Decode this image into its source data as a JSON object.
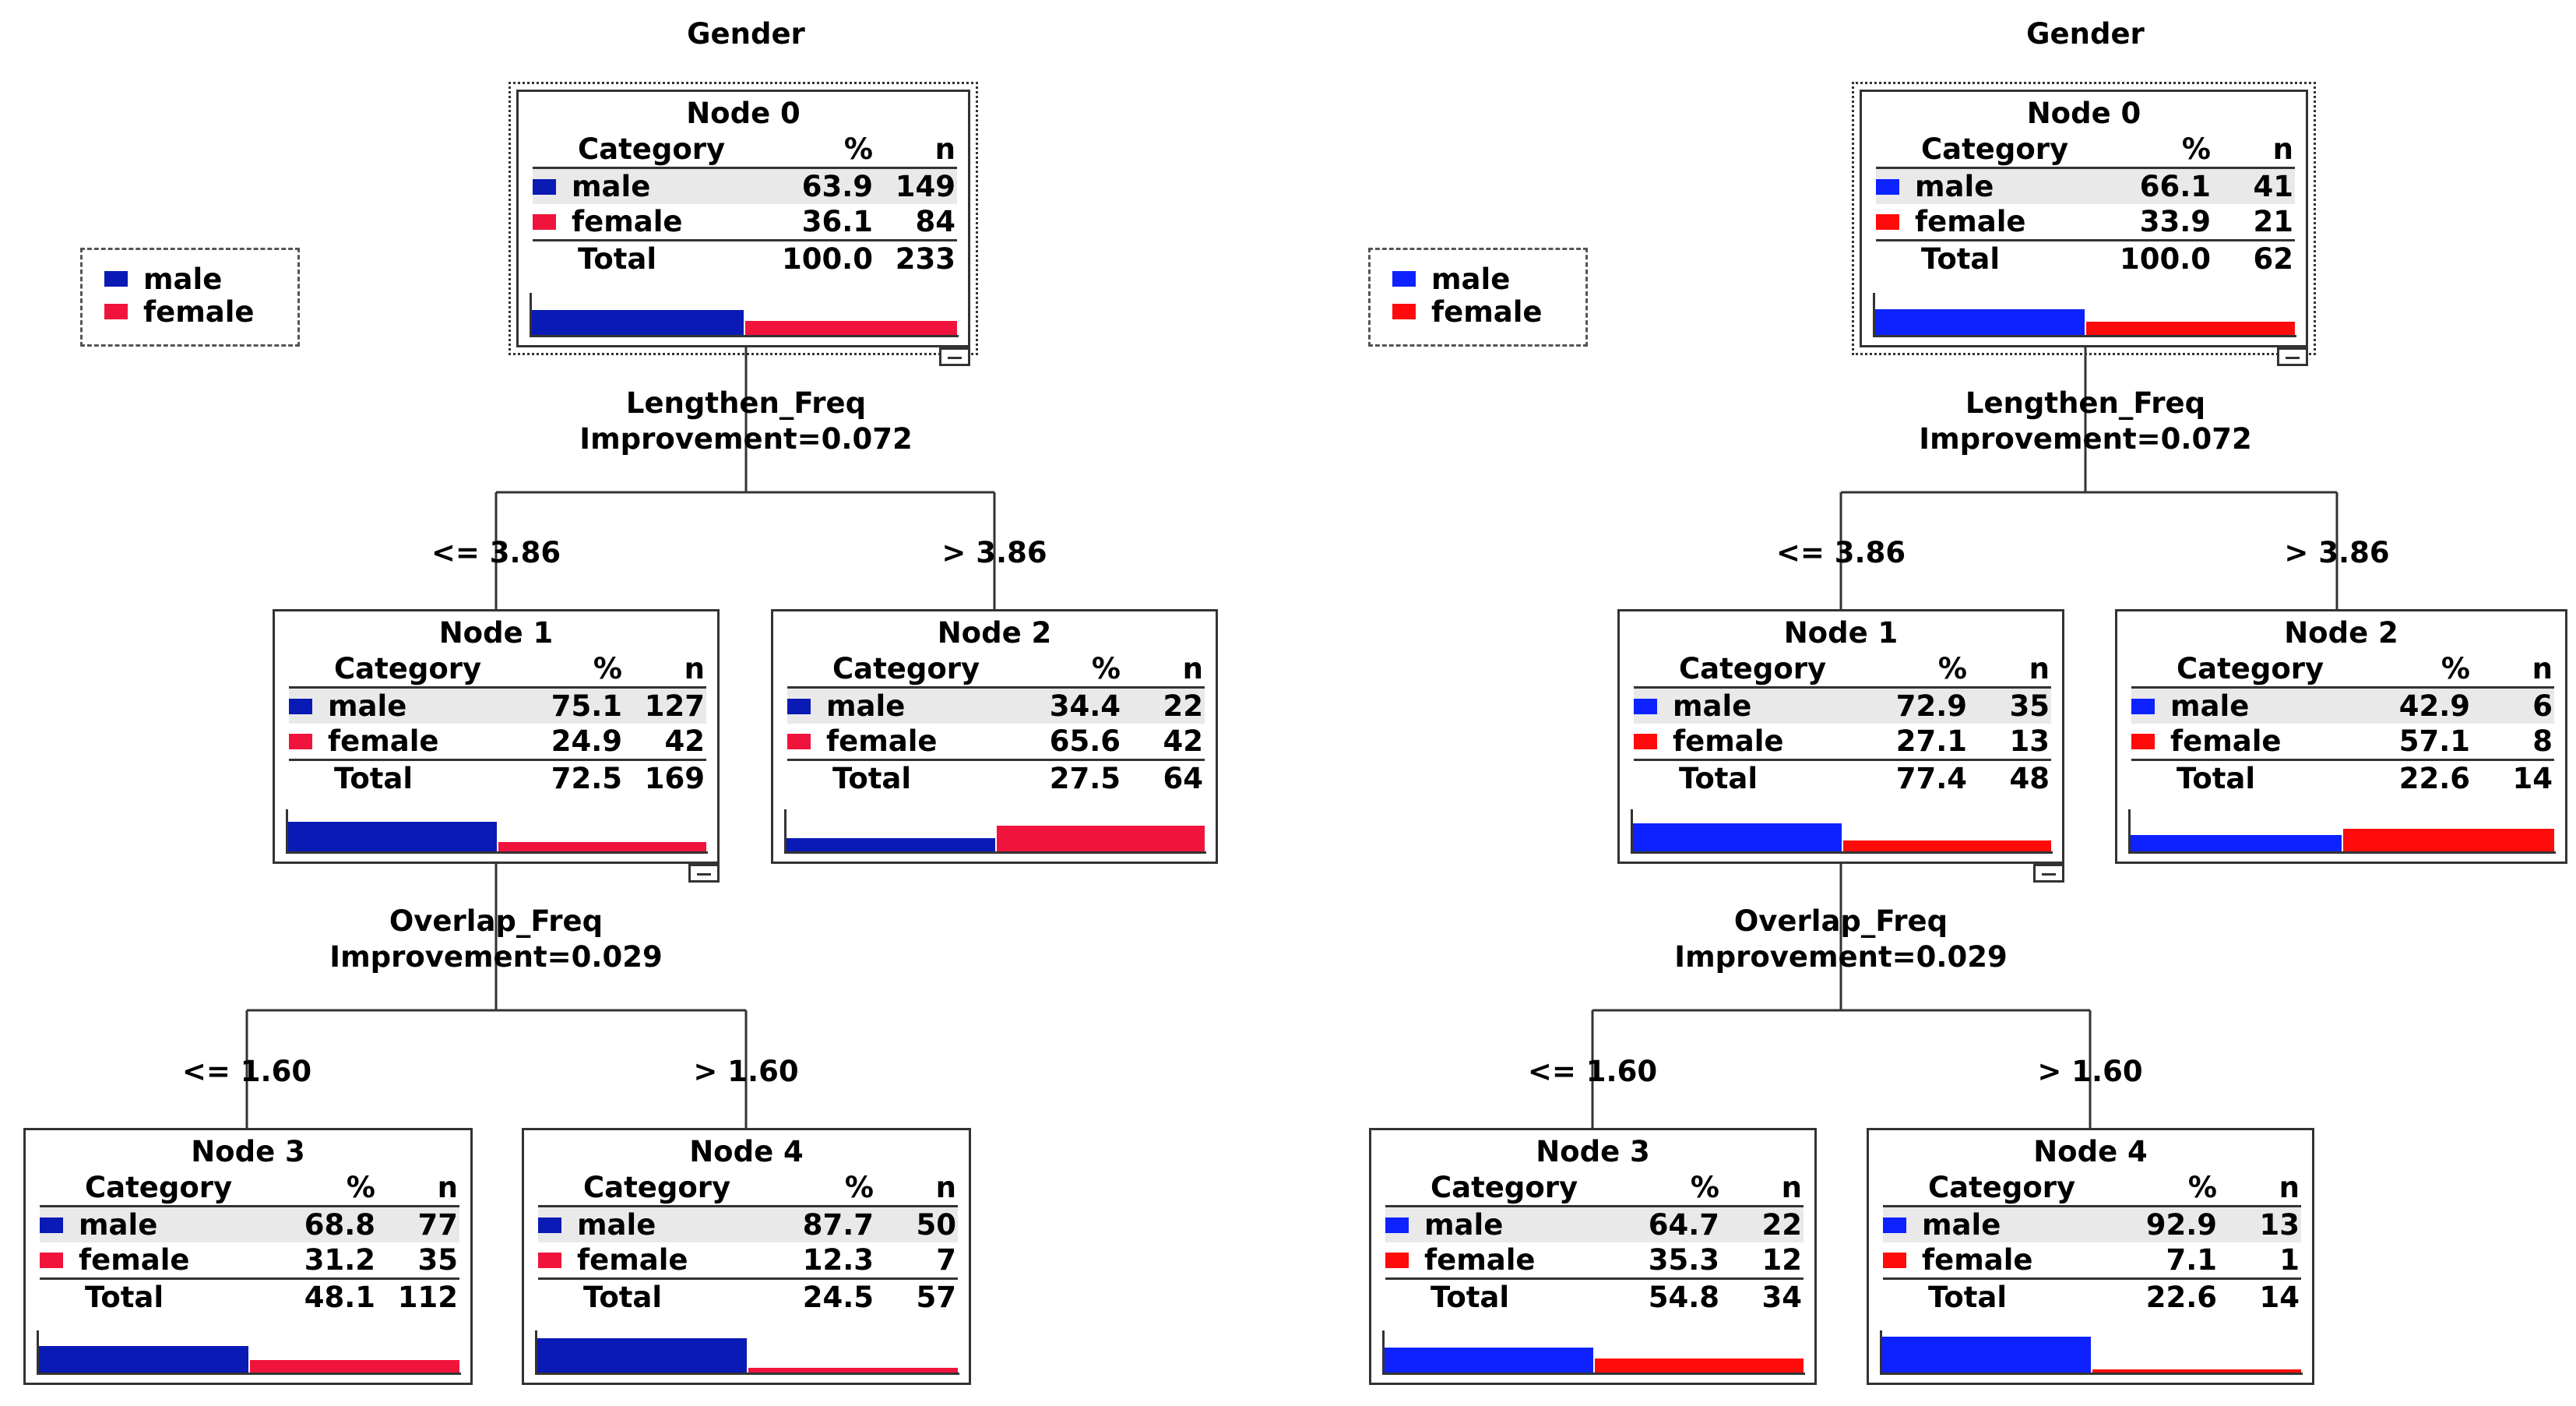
{
  "colors": {
    "left_male": "#0a1ab4",
    "left_female": "#f0143c",
    "right_male": "#0d22ff",
    "right_female": "#ff0b0b",
    "shade": "#e9e9e9",
    "line": "#333333"
  },
  "trees": [
    {
      "target": "Gender",
      "legend": {
        "male_label": "male",
        "female_label": "female",
        "male_icon": "male-swatch",
        "female_icon": "female-swatch"
      },
      "headers": {
        "category": "Category",
        "pct": "%",
        "n": "n",
        "total": "Total"
      },
      "splits": [
        {
          "variable": "Lengthen_Freq",
          "improvement": "Improvement=0.072",
          "left_cond": "<= 3.86",
          "right_cond": "> 3.86"
        },
        {
          "variable": "Overlap_Freq",
          "improvement": "Improvement=0.029",
          "left_cond": "<= 1.60",
          "right_cond": "> 1.60"
        }
      ],
      "nodes": [
        {
          "title": "Node 0",
          "male_pct": "63.9",
          "male_n": "149",
          "male_label": "male",
          "female_pct": "36.1",
          "female_n": "84",
          "female_label": "female",
          "total_pct": "100.0",
          "total_n": "233",
          "male_share": 0.639,
          "female_share": 0.361
        },
        {
          "title": "Node 1",
          "male_pct": "75.1",
          "male_n": "127",
          "male_label": "male",
          "female_pct": "24.9",
          "female_n": "42",
          "female_label": "female",
          "total_pct": "72.5",
          "total_n": "169",
          "male_share": 0.751,
          "female_share": 0.249
        },
        {
          "title": "Node 2",
          "male_pct": "34.4",
          "male_n": "22",
          "male_label": "male",
          "female_pct": "65.6",
          "female_n": "42",
          "female_label": "female",
          "total_pct": "27.5",
          "total_n": "64",
          "male_share": 0.344,
          "female_share": 0.656
        },
        {
          "title": "Node 3",
          "male_pct": "68.8",
          "male_n": "77",
          "male_label": "male",
          "female_pct": "31.2",
          "female_n": "35",
          "female_label": "female",
          "total_pct": "48.1",
          "total_n": "112",
          "male_share": 0.688,
          "female_share": 0.312
        },
        {
          "title": "Node 4",
          "male_pct": "87.7",
          "male_n": "50",
          "male_label": "male",
          "female_pct": "12.3",
          "female_n": "7",
          "female_label": "female",
          "total_pct": "24.5",
          "total_n": "57",
          "male_share": 0.877,
          "female_share": 0.123
        }
      ]
    },
    {
      "target": "Gender",
      "legend": {
        "male_label": "male",
        "female_label": "female",
        "male_icon": "male-swatch",
        "female_icon": "female-swatch"
      },
      "headers": {
        "category": "Category",
        "pct": "%",
        "n": "n",
        "total": "Total"
      },
      "splits": [
        {
          "variable": "Lengthen_Freq",
          "improvement": "Improvement=0.072",
          "left_cond": "<= 3.86",
          "right_cond": "> 3.86"
        },
        {
          "variable": "Overlap_Freq",
          "improvement": "Improvement=0.029",
          "left_cond": "<= 1.60",
          "right_cond": "> 1.60"
        }
      ],
      "nodes": [
        {
          "title": "Node 0",
          "male_pct": "66.1",
          "male_n": "41",
          "male_label": "male",
          "female_pct": "33.9",
          "female_n": "21",
          "female_label": "female",
          "total_pct": "100.0",
          "total_n": "62",
          "male_share": 0.661,
          "female_share": 0.339
        },
        {
          "title": "Node 1",
          "male_pct": "72.9",
          "male_n": "35",
          "male_label": "male",
          "female_pct": "27.1",
          "female_n": "13",
          "female_label": "female",
          "total_pct": "77.4",
          "total_n": "48",
          "male_share": 0.729,
          "female_share": 0.271
        },
        {
          "title": "Node 2",
          "male_pct": "42.9",
          "male_n": "6",
          "male_label": "male",
          "female_pct": "57.1",
          "female_n": "8",
          "female_label": "female",
          "total_pct": "22.6",
          "total_n": "14",
          "male_share": 0.429,
          "female_share": 0.571
        },
        {
          "title": "Node 3",
          "male_pct": "64.7",
          "male_n": "22",
          "male_label": "male",
          "female_pct": "35.3",
          "female_n": "12",
          "female_label": "female",
          "total_pct": "54.8",
          "total_n": "34",
          "male_share": 0.647,
          "female_share": 0.353
        },
        {
          "title": "Node 4",
          "male_pct": "92.9",
          "male_n": "13",
          "male_label": "male",
          "female_pct": "7.1",
          "female_n": "1",
          "female_label": "female",
          "total_pct": "22.6",
          "total_n": "14",
          "male_share": 0.929,
          "female_share": 0.071
        }
      ]
    }
  ]
}
